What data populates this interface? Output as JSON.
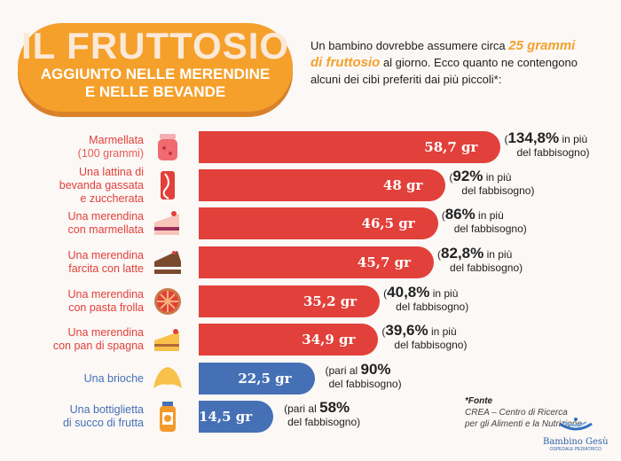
{
  "header": {
    "title": "IL FRUTTOSIO",
    "subtitle_line1": "AGGIUNTO NELLE MERENDINE",
    "subtitle_line2": "E NELLE BEVANDE"
  },
  "intro": {
    "part1": "Un bambino dovrebbe assumere circa ",
    "highlight1": "25 grammi",
    "highlight2": "di fruttosio",
    "part2": " al giorno.  Ecco quanto ne contengono alcuni dei cibi preferiti dai più piccoli*:"
  },
  "colors": {
    "over": "#e2403a",
    "under": "#4570b5",
    "accent": "#f5a02b"
  },
  "chart_data": {
    "type": "bar",
    "orientation": "horizontal",
    "unit": "gr",
    "categories": [
      "Marmellata (100 grammi)",
      "Una lattina di bevanda gassata e zuccherata",
      "Una merendina con marmellata",
      "Una merendina farcita con latte",
      "Una merendina con pasta frolla",
      "Una merendina con pan di spagna",
      "Una brioche",
      "Una bottiglietta di succo di frutta"
    ],
    "values": [
      58.7,
      48,
      46.5,
      45.7,
      35.2,
      34.9,
      22.5,
      14.5
    ],
    "items": [
      {
        "label1": "Marmellata",
        "label2": "(100 grammi)",
        "value_label": "58,7 gr",
        "pct": "134,8%",
        "pre": "(",
        "post": " in più",
        "post2": "del fabbisogno)",
        "color": "over",
        "icon": "jam-jar-icon"
      },
      {
        "label1": "Una lattina di",
        "label2": "bevanda gassata",
        "label3": "e zuccherata",
        "value_label": "48 gr",
        "pct": "92%",
        "pre": "(",
        "post": " in più",
        "post2": "del fabbisogno)",
        "color": "over",
        "icon": "soda-can-icon"
      },
      {
        "label1": "Una merendina",
        "label2": "con marmellata",
        "value_label": "46,5 gr",
        "pct": "86%",
        "pre": "(",
        "post": " in più",
        "post2": "del fabbisogno)",
        "color": "over",
        "icon": "jam-cake-icon"
      },
      {
        "label1": "Una merendina",
        "label2": "farcita con latte",
        "value_label": "45,7 gr",
        "pct": "82,8%",
        "pre": "(",
        "post": " in più",
        "post2": "del fabbisogno)",
        "color": "over",
        "icon": "chocolate-cake-icon"
      },
      {
        "label1": "Una merendina",
        "label2": "con pasta frolla",
        "value_label": "35,2 gr",
        "pct": "40,8%",
        "pre": "(",
        "post": " in più",
        "post2": "del fabbisogno)",
        "color": "over",
        "icon": "tart-icon"
      },
      {
        "label1": "Una merendina",
        "label2": "con pan di spagna",
        "value_label": "34,9 gr",
        "pct": "39,6%",
        "pre": "(",
        "post": " in più",
        "post2": "del fabbisogno)",
        "color": "over",
        "icon": "sponge-cake-icon"
      },
      {
        "label1": "Una brioche",
        "value_label": "22,5 gr",
        "pct": "90%",
        "pre": "(pari al ",
        "post": "",
        "post2": "del fabbisogno)",
        "color": "under",
        "icon": "croissant-icon"
      },
      {
        "label1": "Una bottiglietta",
        "label2": "di succo di frutta",
        "value_label": "14,5 gr",
        "pct": "58%",
        "pre": "(pari al ",
        "post": "",
        "post2": "del fabbisogno)",
        "color": "under",
        "icon": "juice-bottle-icon"
      }
    ]
  },
  "source": {
    "title": "*Fonte",
    "line1": "CREA – Centro di Ricerca",
    "line2": "per gli Alimenti e la Nutrizione"
  },
  "logo": {
    "name": "Bambino Gesù",
    "sub": "OSPEDALE PEDIATRICO"
  }
}
